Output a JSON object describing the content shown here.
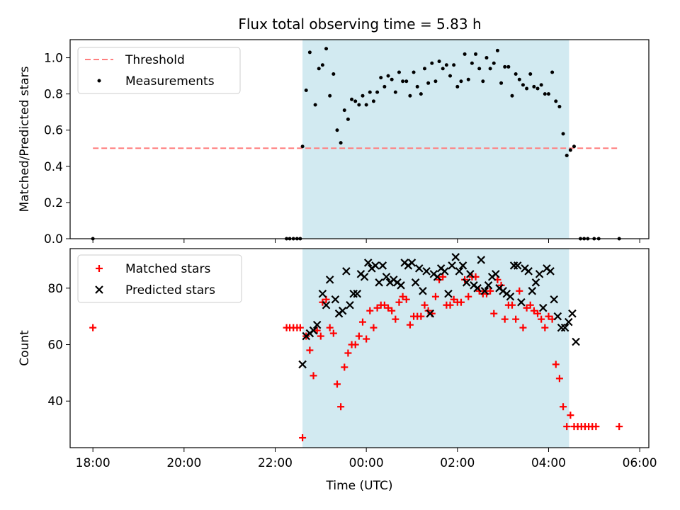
{
  "figure": {
    "title": "Flux total observing time = 5.83 h"
  },
  "colors": {
    "observing_band": "#add8e6",
    "threshold": "#ff7f7f",
    "matched": "#ff0000",
    "predicted": "#000000",
    "measurements": "#000000"
  },
  "chart_data": [
    {
      "type": "scatter",
      "title": "Flux total observing time = 5.83 h",
      "xlabel": "",
      "ylabel": "Matched/Predicted stars",
      "x_unit": "hours since 18:00 UTC",
      "xlim": [
        -0.5,
        12.2
      ],
      "ylim": [
        0,
        1.1
      ],
      "yticks": [
        0.0,
        0.2,
        0.4,
        0.6,
        0.8,
        1.0
      ],
      "ytick_labels": [
        "0.0",
        "0.2",
        "0.4",
        "0.6",
        "0.8",
        "1.0"
      ],
      "grid": false,
      "legend": "upper-left",
      "observing_window": [
        4.6,
        10.45
      ],
      "threshold": {
        "name": "Threshold",
        "y": 0.5,
        "x_range": [
          0,
          11.55
        ]
      },
      "series": [
        {
          "name": "Measurements",
          "marker": "dot",
          "points": [
            [
              0.0,
              0.0
            ],
            [
              4.25,
              0.0
            ],
            [
              4.32,
              0.0
            ],
            [
              4.4,
              0.0
            ],
            [
              4.48,
              0.0
            ],
            [
              4.55,
              0.0
            ],
            [
              4.6,
              0.51
            ],
            [
              4.68,
              0.82
            ],
            [
              4.76,
              1.03
            ],
            [
              4.88,
              0.74
            ],
            [
              4.96,
              0.94
            ],
            [
              5.04,
              0.96
            ],
            [
              5.12,
              1.05
            ],
            [
              5.2,
              0.79
            ],
            [
              5.28,
              0.91
            ],
            [
              5.36,
              0.6
            ],
            [
              5.44,
              0.53
            ],
            [
              5.52,
              0.71
            ],
            [
              5.6,
              0.66
            ],
            [
              5.68,
              0.77
            ],
            [
              5.76,
              0.76
            ],
            [
              5.84,
              0.74
            ],
            [
              5.92,
              0.79
            ],
            [
              6.0,
              0.74
            ],
            [
              6.08,
              0.81
            ],
            [
              6.16,
              0.76
            ],
            [
              6.24,
              0.81
            ],
            [
              6.32,
              0.89
            ],
            [
              6.4,
              0.84
            ],
            [
              6.48,
              0.9
            ],
            [
              6.56,
              0.88
            ],
            [
              6.64,
              0.81
            ],
            [
              6.72,
              0.92
            ],
            [
              6.8,
              0.87
            ],
            [
              6.88,
              0.87
            ],
            [
              6.96,
              0.79
            ],
            [
              7.04,
              0.92
            ],
            [
              7.12,
              0.84
            ],
            [
              7.2,
              0.8
            ],
            [
              7.28,
              0.94
            ],
            [
              7.36,
              0.86
            ],
            [
              7.44,
              0.97
            ],
            [
              7.52,
              0.87
            ],
            [
              7.6,
              0.98
            ],
            [
              7.68,
              0.94
            ],
            [
              7.76,
              0.96
            ],
            [
              7.84,
              0.9
            ],
            [
              7.92,
              0.96
            ],
            [
              8.0,
              0.84
            ],
            [
              8.08,
              0.87
            ],
            [
              8.16,
              1.02
            ],
            [
              8.24,
              0.88
            ],
            [
              8.32,
              0.97
            ],
            [
              8.4,
              1.02
            ],
            [
              8.48,
              0.94
            ],
            [
              8.56,
              0.87
            ],
            [
              8.64,
              1.0
            ],
            [
              8.72,
              0.94
            ],
            [
              8.8,
              0.97
            ],
            [
              8.88,
              1.04
            ],
            [
              8.96,
              0.86
            ],
            [
              9.04,
              0.95
            ],
            [
              9.12,
              0.95
            ],
            [
              9.2,
              0.79
            ],
            [
              9.28,
              0.91
            ],
            [
              9.36,
              0.88
            ],
            [
              9.44,
              0.85
            ],
            [
              9.52,
              0.83
            ],
            [
              9.6,
              0.91
            ],
            [
              9.68,
              0.84
            ],
            [
              9.76,
              0.83
            ],
            [
              9.84,
              0.85
            ],
            [
              9.92,
              0.8
            ],
            [
              10.0,
              0.8
            ],
            [
              10.08,
              0.92
            ],
            [
              10.16,
              0.76
            ],
            [
              10.24,
              0.73
            ],
            [
              10.32,
              0.58
            ],
            [
              10.4,
              0.46
            ],
            [
              10.48,
              0.49
            ],
            [
              10.56,
              0.51
            ],
            [
              10.7,
              0.0
            ],
            [
              10.78,
              0.0
            ],
            [
              10.86,
              0.0
            ],
            [
              11.0,
              0.0
            ],
            [
              11.1,
              0.0
            ],
            [
              11.55,
              0.0
            ]
          ]
        }
      ]
    },
    {
      "type": "scatter",
      "title": "",
      "xlabel": "Time (UTC)",
      "ylabel": "Count",
      "x_unit": "hours since 18:00 UTC",
      "xlim": [
        -0.5,
        12.2
      ],
      "ylim": [
        23.5,
        94
      ],
      "yticks": [
        40,
        60,
        80
      ],
      "ytick_labels": [
        "40",
        "60",
        "80"
      ],
      "xticks": [
        0,
        2,
        4,
        6,
        8,
        10,
        12
      ],
      "xtick_labels": [
        "18:00",
        "20:00",
        "22:00",
        "00:00",
        "02:00",
        "04:00",
        "06:00"
      ],
      "grid": false,
      "legend": "upper-left",
      "observing_window": [
        4.6,
        10.45
      ],
      "series": [
        {
          "name": "Matched stars",
          "marker": "plus",
          "points": [
            [
              0.0,
              66
            ],
            [
              4.25,
              66
            ],
            [
              4.32,
              66
            ],
            [
              4.4,
              66
            ],
            [
              4.48,
              66
            ],
            [
              4.55,
              66
            ],
            [
              4.6,
              27
            ],
            [
              4.68,
              63
            ],
            [
              4.76,
              58
            ],
            [
              4.84,
              49
            ],
            [
              4.92,
              65
            ],
            [
              5.0,
              63
            ],
            [
              5.04,
              75
            ],
            [
              5.12,
              76
            ],
            [
              5.2,
              66
            ],
            [
              5.28,
              64
            ],
            [
              5.36,
              46
            ],
            [
              5.44,
              38
            ],
            [
              5.52,
              52
            ],
            [
              5.6,
              57
            ],
            [
              5.68,
              60
            ],
            [
              5.76,
              60
            ],
            [
              5.84,
              63
            ],
            [
              5.92,
              68
            ],
            [
              6.0,
              62
            ],
            [
              6.08,
              72
            ],
            [
              6.16,
              66
            ],
            [
              6.24,
              73
            ],
            [
              6.32,
              74
            ],
            [
              6.4,
              74
            ],
            [
              6.48,
              73
            ],
            [
              6.56,
              72
            ],
            [
              6.64,
              69
            ],
            [
              6.72,
              75
            ],
            [
              6.8,
              77
            ],
            [
              6.88,
              76
            ],
            [
              6.96,
              67
            ],
            [
              7.04,
              70
            ],
            [
              7.12,
              70
            ],
            [
              7.2,
              70
            ],
            [
              7.28,
              74
            ],
            [
              7.36,
              72
            ],
            [
              7.44,
              71
            ],
            [
              7.52,
              77
            ],
            [
              7.6,
              83
            ],
            [
              7.68,
              84
            ],
            [
              7.76,
              74
            ],
            [
              7.84,
              74
            ],
            [
              7.92,
              76
            ],
            [
              8.0,
              75
            ],
            [
              8.08,
              75
            ],
            [
              8.16,
              83
            ],
            [
              8.24,
              77
            ],
            [
              8.32,
              84
            ],
            [
              8.4,
              84
            ],
            [
              8.48,
              79
            ],
            [
              8.56,
              78
            ],
            [
              8.64,
              78
            ],
            [
              8.72,
              79
            ],
            [
              8.8,
              71
            ],
            [
              8.88,
              83
            ],
            [
              8.96,
              81
            ],
            [
              9.04,
              69
            ],
            [
              9.12,
              74
            ],
            [
              9.2,
              74
            ],
            [
              9.28,
              69
            ],
            [
              9.36,
              79
            ],
            [
              9.44,
              66
            ],
            [
              9.52,
              73
            ],
            [
              9.6,
              74
            ],
            [
              9.68,
              72
            ],
            [
              9.76,
              71
            ],
            [
              9.84,
              69
            ],
            [
              9.92,
              66
            ],
            [
              10.0,
              70
            ],
            [
              10.08,
              69
            ],
            [
              10.16,
              53
            ],
            [
              10.24,
              48
            ],
            [
              10.32,
              38
            ],
            [
              10.4,
              31
            ],
            [
              10.48,
              35
            ],
            [
              10.56,
              31
            ],
            [
              10.64,
              31
            ],
            [
              10.72,
              31
            ],
            [
              10.8,
              31
            ],
            [
              10.88,
              31
            ],
            [
              10.96,
              31
            ],
            [
              11.04,
              31
            ],
            [
              11.55,
              31
            ]
          ]
        },
        {
          "name": "Predicted stars",
          "marker": "x",
          "points": [
            [
              4.6,
              53
            ],
            [
              4.68,
              63
            ],
            [
              4.76,
              64
            ],
            [
              4.84,
              65
            ],
            [
              4.92,
              67
            ],
            [
              5.04,
              78
            ],
            [
              5.12,
              74
            ],
            [
              5.2,
              83
            ],
            [
              5.32,
              76
            ],
            [
              5.4,
              71
            ],
            [
              5.48,
              72
            ],
            [
              5.56,
              86
            ],
            [
              5.64,
              74
            ],
            [
              5.72,
              78
            ],
            [
              5.8,
              78
            ],
            [
              5.88,
              85
            ],
            [
              5.96,
              84
            ],
            [
              6.04,
              89
            ],
            [
              6.12,
              87
            ],
            [
              6.2,
              88
            ],
            [
              6.28,
              82
            ],
            [
              6.36,
              88
            ],
            [
              6.44,
              84
            ],
            [
              6.52,
              82
            ],
            [
              6.6,
              83
            ],
            [
              6.68,
              82
            ],
            [
              6.76,
              81
            ],
            [
              6.84,
              89
            ],
            [
              6.92,
              88
            ],
            [
              7.0,
              89
            ],
            [
              7.08,
              82
            ],
            [
              7.16,
              87
            ],
            [
              7.24,
              79
            ],
            [
              7.32,
              86
            ],
            [
              7.4,
              71
            ],
            [
              7.48,
              85
            ],
            [
              7.56,
              84
            ],
            [
              7.64,
              87
            ],
            [
              7.72,
              86
            ],
            [
              7.8,
              78
            ],
            [
              7.88,
              88
            ],
            [
              7.96,
              91
            ],
            [
              8.04,
              86
            ],
            [
              8.12,
              88
            ],
            [
              8.2,
              82
            ],
            [
              8.28,
              85
            ],
            [
              8.36,
              81
            ],
            [
              8.44,
              80
            ],
            [
              8.52,
              90
            ],
            [
              8.6,
              79
            ],
            [
              8.68,
              81
            ],
            [
              8.76,
              84
            ],
            [
              8.84,
              85
            ],
            [
              8.92,
              80
            ],
            [
              9.0,
              79
            ],
            [
              9.08,
              78
            ],
            [
              9.16,
              77
            ],
            [
              9.24,
              88
            ],
            [
              9.32,
              88
            ],
            [
              9.4,
              75
            ],
            [
              9.48,
              87
            ],
            [
              9.56,
              86
            ],
            [
              9.64,
              79
            ],
            [
              9.72,
              82
            ],
            [
              9.8,
              85
            ],
            [
              9.88,
              73
            ],
            [
              9.96,
              87
            ],
            [
              10.04,
              86
            ],
            [
              10.12,
              76
            ],
            [
              10.2,
              70
            ],
            [
              10.28,
              66
            ],
            [
              10.36,
              66
            ],
            [
              10.44,
              68
            ],
            [
              10.52,
              71
            ],
            [
              10.6,
              61
            ]
          ]
        }
      ]
    }
  ]
}
